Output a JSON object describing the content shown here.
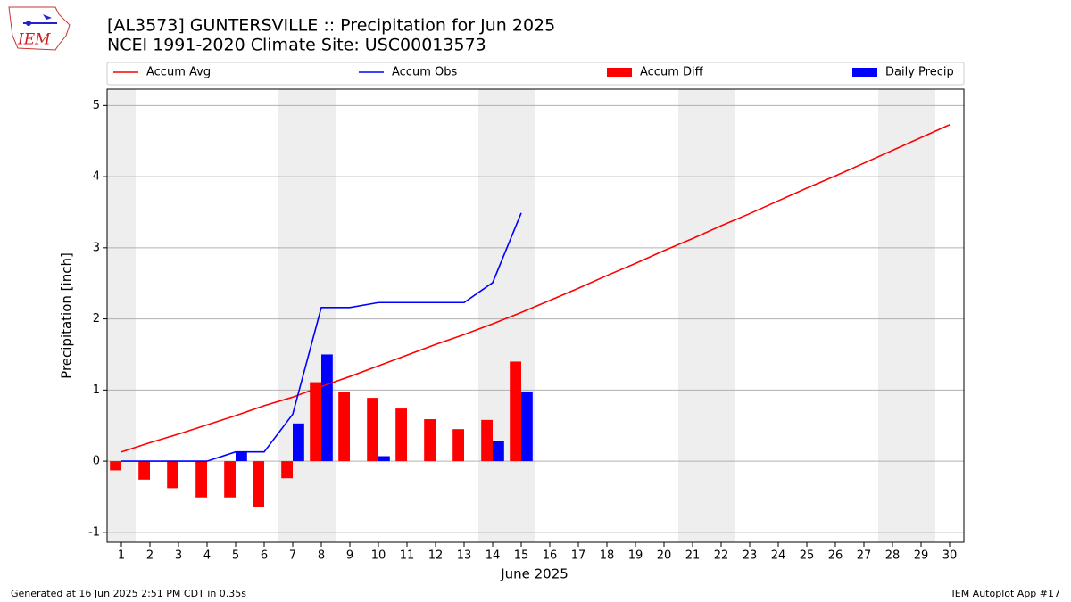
{
  "chart_data": {
    "type": "bar_line",
    "title": "[AL3573] GUNTERSVILLE :: Precipitation for Jun 2025",
    "subtitle": "NCEI 1991-2020 Climate Site: USC00013573",
    "xlabel": "June 2025",
    "ylabel": "Precipitation [inch]",
    "x": [
      1,
      2,
      3,
      4,
      5,
      6,
      7,
      8,
      9,
      10,
      11,
      12,
      13,
      14,
      15,
      16,
      17,
      18,
      19,
      20,
      21,
      22,
      23,
      24,
      25,
      26,
      27,
      28,
      29,
      30
    ],
    "series": [
      {
        "name": "Accum Avg",
        "kind": "line",
        "color": "#ff0000",
        "values": [
          0.13,
          0.26,
          0.38,
          0.51,
          0.64,
          0.78,
          0.9,
          1.05,
          1.19,
          1.34,
          1.49,
          1.64,
          1.78,
          1.93,
          2.09,
          2.26,
          2.43,
          2.61,
          2.78,
          2.96,
          3.13,
          3.31,
          3.48,
          3.66,
          3.84,
          4.01,
          4.19,
          4.37,
          4.55,
          4.73
        ]
      },
      {
        "name": "Accum Obs",
        "kind": "line",
        "color": "#0000ff",
        "values": [
          0,
          0,
          0,
          0,
          0.13,
          0.13,
          0.66,
          2.16,
          2.16,
          2.23,
          2.23,
          2.23,
          2.23,
          2.51,
          3.49,
          null,
          null,
          null,
          null,
          null,
          null,
          null,
          null,
          null,
          null,
          null,
          null,
          null,
          null,
          null
        ]
      },
      {
        "name": "Accum Diff",
        "kind": "bar",
        "color": "#ff0000",
        "values": [
          -0.13,
          -0.26,
          -0.38,
          -0.51,
          -0.51,
          -0.65,
          -0.24,
          1.11,
          0.97,
          0.89,
          0.74,
          0.59,
          0.45,
          0.58,
          1.4,
          null,
          null,
          null,
          null,
          null,
          null,
          null,
          null,
          null,
          null,
          null,
          null,
          null,
          null,
          null
        ]
      },
      {
        "name": "Daily Precip",
        "kind": "bar",
        "color": "#0000ff",
        "values": [
          0,
          0,
          0,
          0,
          0.13,
          0,
          0.53,
          1.5,
          0,
          0.07,
          0,
          0,
          0,
          0.28,
          0.98,
          null,
          null,
          null,
          null,
          null,
          null,
          null,
          null,
          null,
          null,
          null,
          null,
          null,
          null,
          null
        ]
      }
    ],
    "xlim": [
      0.5,
      30.5
    ],
    "xticks": [
      1,
      2,
      3,
      4,
      5,
      6,
      7,
      8,
      9,
      10,
      11,
      12,
      13,
      14,
      15,
      16,
      17,
      18,
      19,
      20,
      21,
      22,
      23,
      24,
      25,
      26,
      27,
      28,
      29,
      30
    ],
    "ylim": [
      -1.14,
      5.23
    ],
    "yticks": [
      -1,
      0,
      1,
      2,
      3,
      4,
      5
    ],
    "grid": true,
    "legend": "top",
    "footer_left": "Generated at 16 Jun 2025 2:51 PM CDT in 0.35s",
    "footer_right": "IEM Autoplot App #17",
    "logo": "IEM"
  }
}
